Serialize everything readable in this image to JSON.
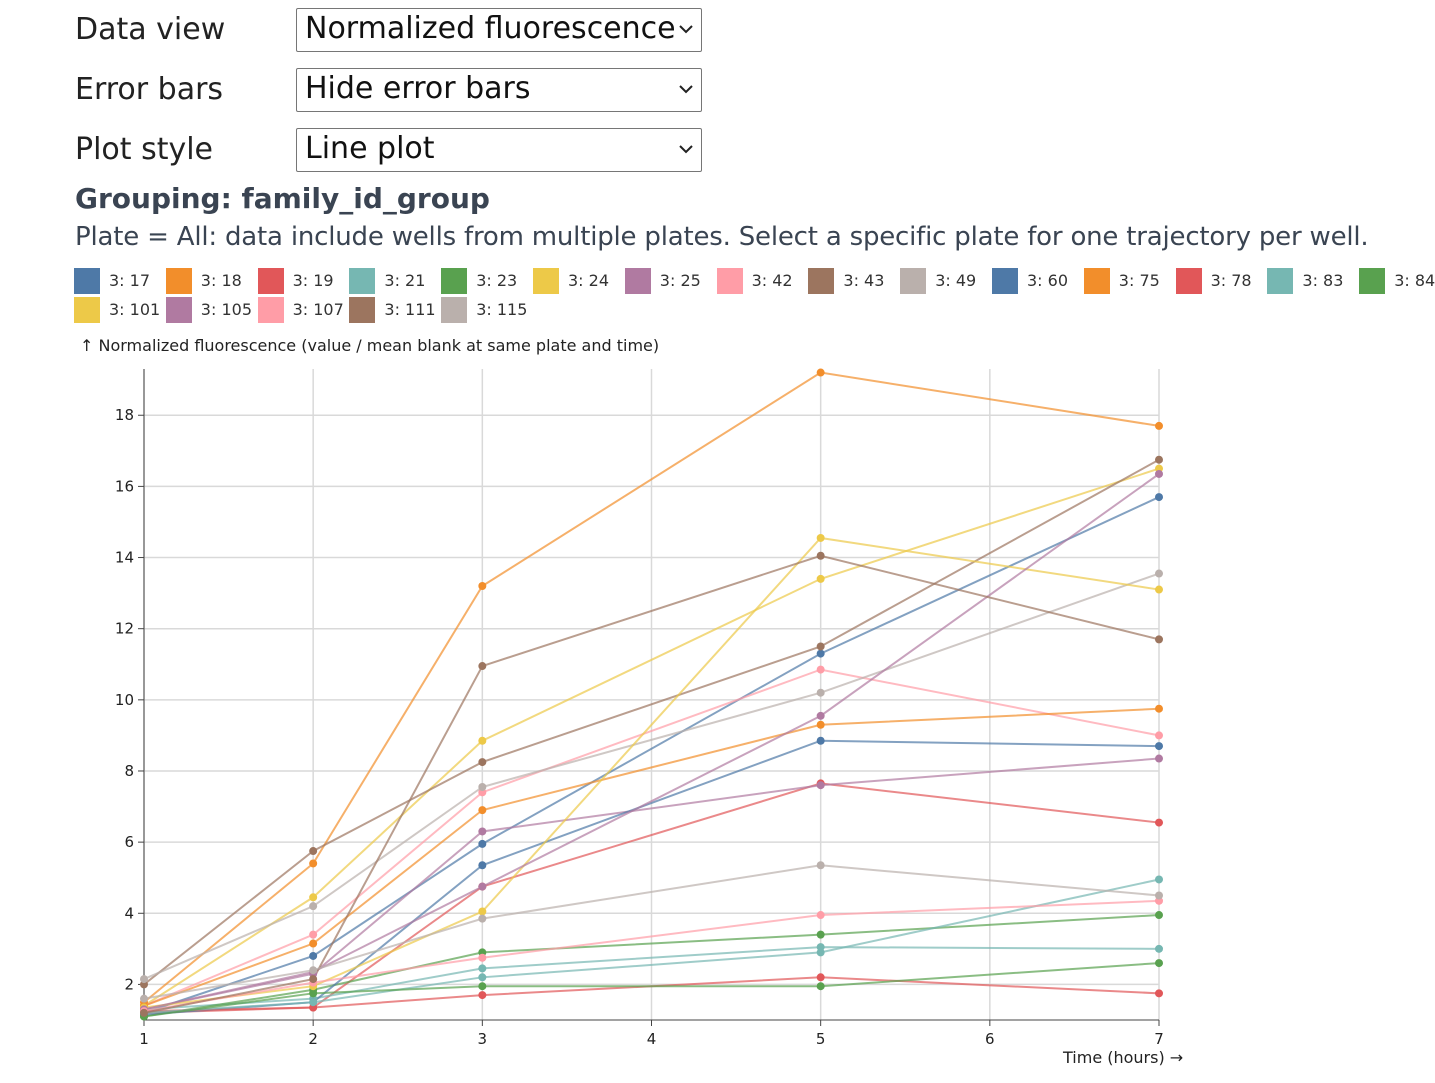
{
  "controls": [
    {
      "label": "Data view",
      "value": "Normalized fluorescence"
    },
    {
      "label": "Error bars",
      "value": "Hide error bars"
    },
    {
      "label": "Plot style",
      "value": "Line plot"
    }
  ],
  "grouping_title": "Grouping: family_id_group",
  "note": "Plate = All: data include wells from multiple plates. Select a specific plate for one trajectory per well.",
  "legend": [
    {
      "label": "3: 17",
      "color": "#4e79a7"
    },
    {
      "label": "3: 18",
      "color": "#f28e2b"
    },
    {
      "label": "3: 19",
      "color": "#e15759"
    },
    {
      "label": "3: 21",
      "color": "#76b7b2"
    },
    {
      "label": "3: 23",
      "color": "#59a14f"
    },
    {
      "label": "3: 24",
      "color": "#edc948"
    },
    {
      "label": "3: 25",
      "color": "#b07aa1"
    },
    {
      "label": "3: 42",
      "color": "#ff9da7"
    },
    {
      "label": "3: 43",
      "color": "#9c755f"
    },
    {
      "label": "3: 49",
      "color": "#bab0ac"
    },
    {
      "label": "3: 60",
      "color": "#4e79a7"
    },
    {
      "label": "3: 75",
      "color": "#f28e2b"
    },
    {
      "label": "3: 78",
      "color": "#e15759"
    },
    {
      "label": "3: 83",
      "color": "#76b7b2"
    },
    {
      "label": "3: 84",
      "color": "#59a14f"
    },
    {
      "label": "3: 101",
      "color": "#edc948"
    },
    {
      "label": "3: 105",
      "color": "#b07aa1"
    },
    {
      "label": "3: 107",
      "color": "#ff9da7"
    },
    {
      "label": "3: 111",
      "color": "#9c755f"
    },
    {
      "label": "3: 115",
      "color": "#bab0ac"
    }
  ],
  "chart_data": {
    "type": "line",
    "ylabel": "↑ Normalized fluorescence (value / mean blank at same plate and time)",
    "xlabel": "Time (hours) →",
    "x": [
      1,
      2,
      3,
      5,
      7
    ],
    "xlim": [
      1,
      7
    ],
    "ylim": [
      1,
      19.3
    ],
    "xticks": [
      1,
      2,
      3,
      4,
      5,
      6,
      7
    ],
    "yticks": [
      2,
      4,
      6,
      8,
      10,
      12,
      14,
      16,
      18
    ],
    "grid": true,
    "series": [
      {
        "name": "3: 17",
        "color": "#4e79a7",
        "values": [
          1.2,
          2.8,
          5.95,
          11.3,
          15.7
        ]
      },
      {
        "name": "3: 18",
        "color": "#f28e2b",
        "values": [
          1.5,
          5.4,
          13.2,
          19.2,
          17.7
        ]
      },
      {
        "name": "3: 19",
        "color": "#e15759",
        "values": [
          1.2,
          1.35,
          4.75,
          7.65,
          6.55
        ]
      },
      {
        "name": "3: 21",
        "color": "#76b7b2",
        "values": [
          1.3,
          1.6,
          2.45,
          3.05,
          3.0
        ]
      },
      {
        "name": "3: 23",
        "color": "#59a14f",
        "values": [
          1.1,
          1.85,
          2.9,
          3.4,
          3.95
        ]
      },
      {
        "name": "3: 24",
        "color": "#edc948",
        "values": [
          1.4,
          4.45,
          8.85,
          13.4,
          16.5
        ]
      },
      {
        "name": "3: 25",
        "color": "#b07aa1",
        "values": [
          1.3,
          2.3,
          6.3,
          7.6,
          8.35
        ]
      },
      {
        "name": "3: 42",
        "color": "#ff9da7",
        "values": [
          1.4,
          3.4,
          7.4,
          10.85,
          9.0
        ]
      },
      {
        "name": "3: 43",
        "color": "#9c755f",
        "values": [
          2.0,
          5.75,
          8.25,
          11.5,
          16.75
        ]
      },
      {
        "name": "3: 49",
        "color": "#bab0ac",
        "values": [
          2.15,
          4.2,
          7.55,
          10.2,
          13.55
        ]
      },
      {
        "name": "3: 60",
        "color": "#4e79a7",
        "values": [
          1.15,
          1.5,
          5.35,
          8.85,
          8.7
        ]
      },
      {
        "name": "3: 75",
        "color": "#f28e2b",
        "values": [
          1.4,
          3.15,
          6.9,
          9.3,
          9.75
        ]
      },
      {
        "name": "3: 78",
        "color": "#e15759",
        "values": [
          1.25,
          1.35,
          1.7,
          2.2,
          1.75
        ]
      },
      {
        "name": "3: 83",
        "color": "#76b7b2",
        "values": [
          1.2,
          1.5,
          2.2,
          2.9,
          4.95
        ]
      },
      {
        "name": "3: 84",
        "color": "#59a14f",
        "values": [
          1.1,
          1.75,
          1.95,
          1.95,
          2.6
        ]
      },
      {
        "name": "3: 101",
        "color": "#edc948",
        "values": [
          1.35,
          1.95,
          4.05,
          14.55,
          13.1
        ]
      },
      {
        "name": "3: 105",
        "color": "#b07aa1",
        "values": [
          1.3,
          2.35,
          4.75,
          9.55,
          16.35
        ]
      },
      {
        "name": "3: 107",
        "color": "#ff9da7",
        "values": [
          1.25,
          2.05,
          2.75,
          3.95,
          4.35
        ]
      },
      {
        "name": "3: 111",
        "color": "#9c755f",
        "values": [
          1.2,
          2.15,
          10.95,
          14.05,
          11.7
        ]
      },
      {
        "name": "3: 115",
        "color": "#bab0ac",
        "values": [
          1.6,
          2.4,
          3.85,
          5.35,
          4.5
        ]
      }
    ]
  }
}
